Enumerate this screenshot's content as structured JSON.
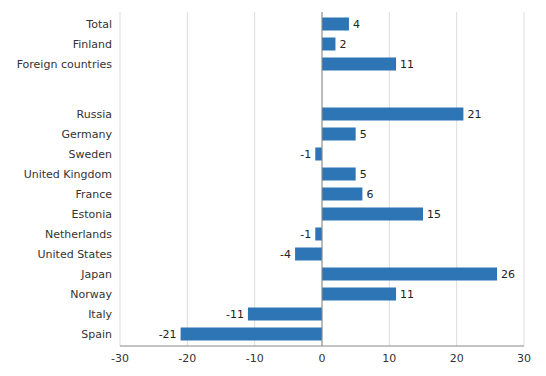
{
  "chart_data": {
    "type": "bar",
    "orientation": "horizontal",
    "categories": [
      "Spain",
      "Italy",
      "Norway",
      "Japan",
      "United States",
      "Netherlands",
      "Estonia",
      "France",
      "United Kingdom",
      "Sweden",
      "Germany",
      "Russia",
      "Foreign countries",
      "Finland",
      "Total"
    ],
    "values": [
      -21,
      -11,
      11,
      26,
      -4,
      -1,
      15,
      6,
      5,
      -1,
      5,
      21,
      11,
      2,
      4
    ],
    "color": "#2E75B6",
    "xlim": [
      -30,
      30
    ],
    "xticks": [
      -30,
      -20,
      -10,
      0,
      10,
      20,
      30
    ],
    "grid": true,
    "data_labels": true
  }
}
